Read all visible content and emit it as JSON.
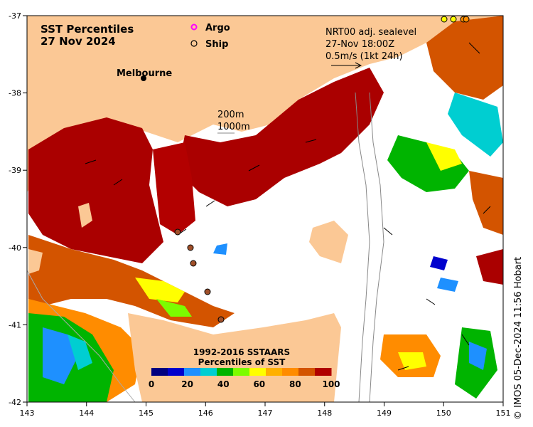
{
  "title": {
    "line1": "SST Percentiles",
    "line2": "27 Nov 2024"
  },
  "place_label": "Melbourne",
  "legend_markers": [
    {
      "label": "Argo",
      "color": "#ff00ff"
    },
    {
      "label": "Ship",
      "color": "#000000"
    }
  ],
  "current_info": {
    "line1": "NRT00 adj. sealevel",
    "line2": "27-Nov 18:00Z",
    "line3": "0.5m/s (1kt 24h)"
  },
  "bathymetry": {
    "line1": "200m",
    "line2": "1000m"
  },
  "colorbar": {
    "title1": "1992-2016 SSTAARS",
    "title2": "Percentiles of SST",
    "colors": [
      "#000080",
      "#0000cd",
      "#1e90ff",
      "#00ced1",
      "#00b400",
      "#7cfc00",
      "#ffff00",
      "#ffb000",
      "#ff8c00",
      "#d35400",
      "#b00000"
    ],
    "tick_labels": [
      "0",
      "20",
      "40",
      "60",
      "80",
      "100"
    ]
  },
  "axes": {
    "x_ticks": [
      "143",
      "144",
      "145",
      "146",
      "147",
      "148",
      "149",
      "150",
      "151"
    ],
    "y_ticks": [
      "-37",
      "-38",
      "-39",
      "-40",
      "-41",
      "-42"
    ]
  },
  "credit": "© IMOS 05-Dec-2024 11:56 Hobart",
  "colors": {
    "land": "#fbc895",
    "ocean_missing": "#ffffff",
    "hot": "#aa0000",
    "warm": "#d35400"
  }
}
